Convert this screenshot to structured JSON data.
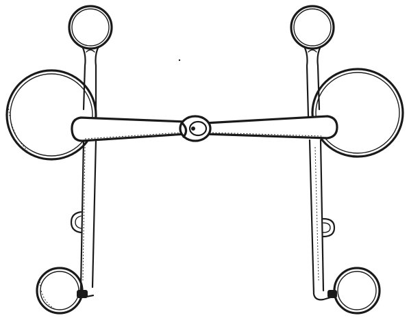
{
  "figure": {
    "subject": "bit-illustration",
    "style": "line-drawing",
    "colors": {
      "ink": "#1a1a1a",
      "paper": "#ffffff"
    }
  }
}
